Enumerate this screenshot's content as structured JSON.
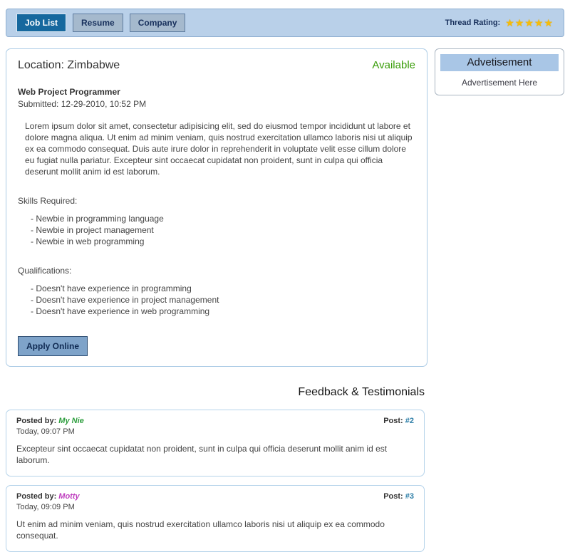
{
  "nav": {
    "tabs": [
      {
        "label": "Job List"
      },
      {
        "label": "Resume"
      },
      {
        "label": "Company"
      }
    ],
    "thread_rating_label": "Thread Rating:",
    "rating_stars": 5
  },
  "job": {
    "location_label": "Location: Zimbabwe",
    "status": "Available",
    "status_color": "#3a9d0a",
    "title": "Web Project Programmer",
    "submitted": "Submitted: 12-29-2010, 10:52 PM",
    "description": "Lorem ipsum dolor sit amet, consectetur adipisicing elit, sed do eiusmod tempor incididunt ut labore et dolore magna aliqua. Ut enim ad minim veniam, quis nostrud exercitation ullamco laboris nisi ut aliquip ex ea commodo consequat. Duis aute irure dolor in reprehenderit in voluptate velit esse cillum dolore eu fugiat nulla pariatur. Excepteur sint occaecat cupidatat non proident, sunt in culpa qui officia deserunt mollit anim id est laborum.",
    "skills_heading": "Skills Required:",
    "skills": [
      "Newbie in programming language",
      "Newbie in project management",
      "Newbie in web programming"
    ],
    "qualifications_heading": "Qualifications:",
    "qualifications": [
      "Doesn't have experience in programming",
      "Doesn't have experience in project management",
      "Doesn't have experience in web programming"
    ],
    "apply_button_label": "Apply Online"
  },
  "sidebar": {
    "ad_header": "Advetisement",
    "ad_body": "Advertisement Here"
  },
  "feedback": {
    "heading": "Feedback & Testimonials",
    "posts": [
      {
        "posted_by_label": "Posted by:",
        "author": "My Nie",
        "author_color": "#2f9e3f",
        "time": "Today, 09:07 PM",
        "post_label": "Post:",
        "post_number": "#2",
        "post_number_color": "#2e7fa8",
        "body": "Excepteur sint occaecat cupidatat non proident, sunt in culpa qui officia deserunt mollit anim id est laborum."
      },
      {
        "posted_by_label": "Posted by:",
        "author": "Motty",
        "author_color": "#bf3fbf",
        "time": "Today, 09:09 PM",
        "post_label": "Post:",
        "post_number": "#3",
        "post_number_color": "#2e7fa8",
        "body": "Ut enim ad minim veniam, quis nostrud exercitation ullamco laboris nisi ut aliquip ex ea commodo consequat."
      }
    ]
  },
  "colors": {
    "topbar_bg": "#b9d0e9",
    "active_tab_bg": "#16689e",
    "inactive_tab_bg": "#a5b9cd",
    "star_gold": "#f4bc0c",
    "panel_border": "#abcbe5",
    "apply_button_bg": "#7ea3c9"
  }
}
